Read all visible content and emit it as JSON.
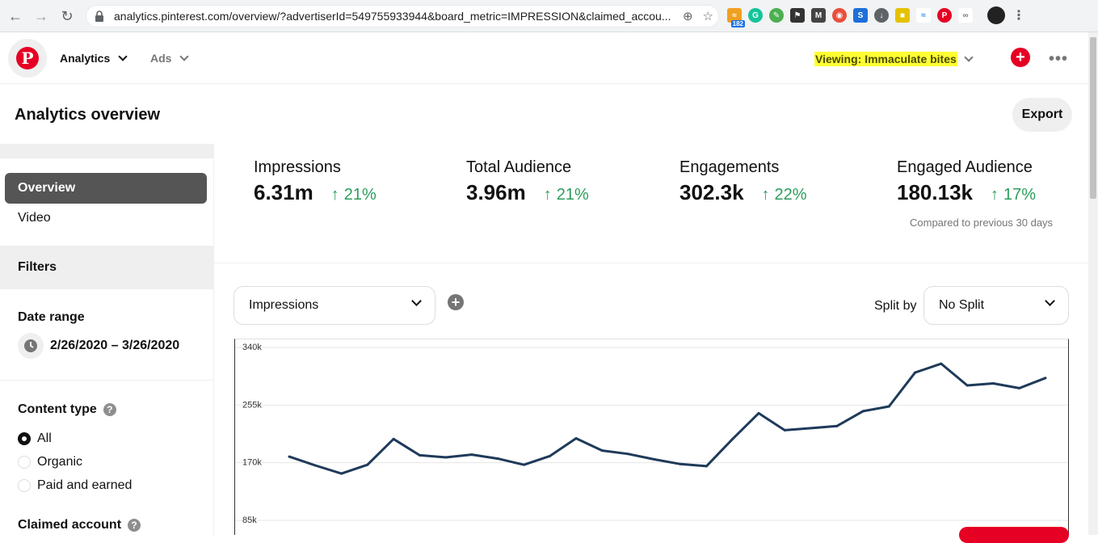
{
  "browser": {
    "url": "analytics.pinterest.com/overview/?advertiserId=549755933944&board_metric=IMPRESSION&claimed_accou...",
    "extension_badge": "182"
  },
  "topbar": {
    "nav_analytics": "Analytics",
    "nav_ads": "Ads",
    "viewing": "Viewing: Immaculate bites",
    "brand_color": "#e60023",
    "highlight_color": "#ffff33"
  },
  "header": {
    "title": "Analytics overview",
    "export_label": "Export"
  },
  "sidebar": {
    "nav_items": [
      {
        "label": "Overview",
        "active": true
      },
      {
        "label": "Video",
        "active": false
      }
    ],
    "filters_label": "Filters",
    "date_range_label": "Date range",
    "date_range_value": "2/26/2020 – 3/26/2020",
    "content_type_label": "Content type",
    "content_type_options": [
      {
        "label": "All",
        "selected": true
      },
      {
        "label": "Organic",
        "selected": false
      },
      {
        "label": "Paid and earned",
        "selected": false
      }
    ],
    "claimed_account_label": "Claimed account"
  },
  "metrics": [
    {
      "label": "Impressions",
      "value": "6.31m",
      "change": "21%"
    },
    {
      "label": "Total Audience",
      "value": "3.96m",
      "change": "21%"
    },
    {
      "label": "Engagements",
      "value": "302.3k",
      "change": "22%"
    },
    {
      "label": "Engaged Audience",
      "value": "180.13k",
      "change": "17%"
    }
  ],
  "comparison_note": "Compared to previous 30 days",
  "controls": {
    "metric_select": "Impressions",
    "split_by_label": "Split by",
    "split_select": "No Split"
  },
  "chart_data": {
    "type": "line",
    "y_tick_labels": [
      "340k",
      "255k",
      "170k",
      "85k"
    ],
    "y_ticks": [
      340000,
      255000,
      170000,
      85000
    ],
    "series": [
      {
        "color": "#1f3a5a",
        "values": [
          179000,
          166000,
          154000,
          167000,
          205000,
          181000,
          178000,
          182000,
          176000,
          167000,
          180000,
          206000,
          188000,
          183000,
          175000,
          168000,
          165000,
          205000,
          243000,
          218000,
          221000,
          224000,
          246000,
          253000,
          303000,
          316000,
          284000,
          287000,
          280000,
          295000
        ]
      }
    ],
    "grid": true
  }
}
